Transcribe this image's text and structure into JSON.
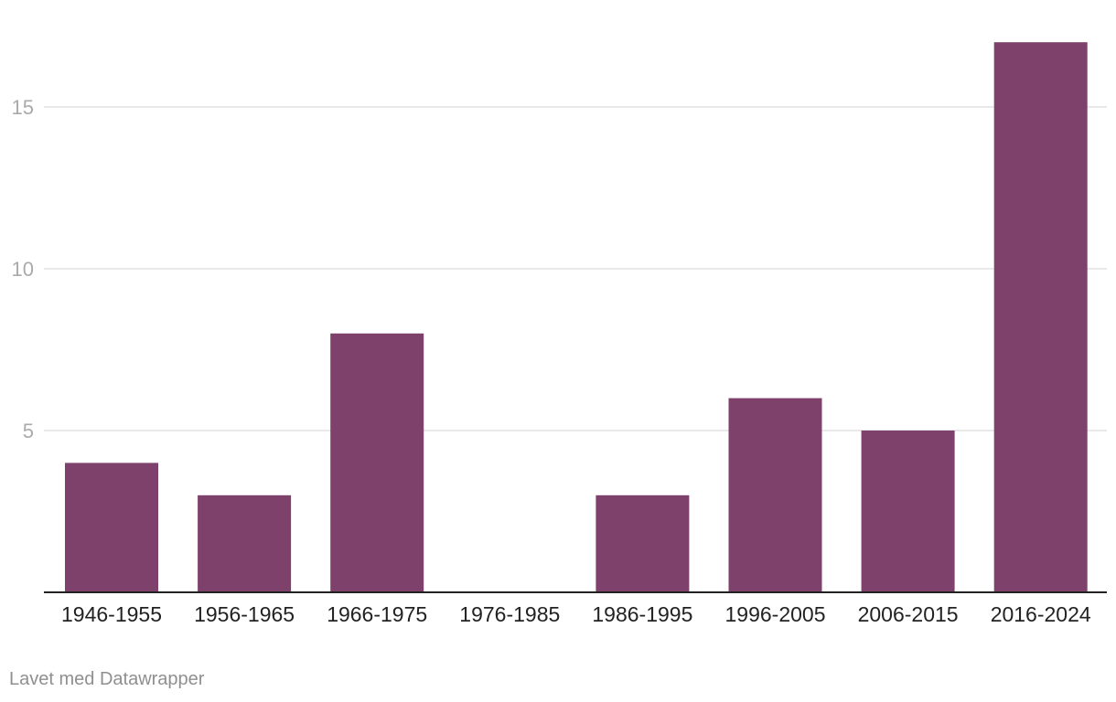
{
  "chart_data": {
    "type": "bar",
    "categories": [
      "1946-1955",
      "1956-1965",
      "1966-1975",
      "1976-1985",
      "1986-1995",
      "1996-2005",
      "2006-2015",
      "2016-2024"
    ],
    "values": [
      4,
      3,
      8,
      0,
      3,
      6,
      5,
      17
    ],
    "yticks": [
      5,
      10,
      15
    ],
    "ylim": [
      0,
      17
    ],
    "grid": true,
    "bar_color": "#7d416b",
    "grid_color": "#e2e2e2",
    "axis_color": "#222222",
    "tick_label_color": "#aaaaaa",
    "category_label_color": "#222222"
  },
  "footer": {
    "credit": "Lavet med Datawrapper"
  }
}
